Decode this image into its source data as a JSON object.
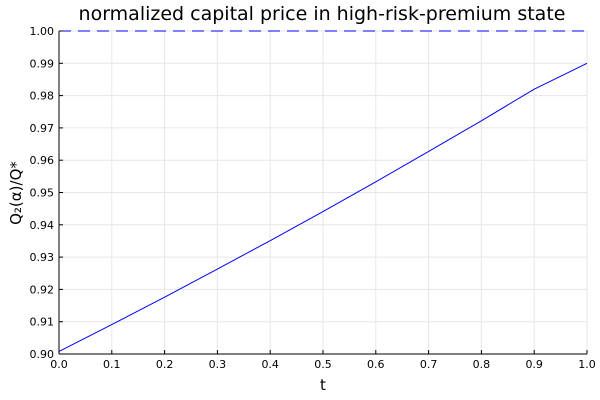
{
  "chart_data": {
    "type": "line",
    "title": "normalized capital price in high-risk-premium state",
    "xlabel": "t",
    "ylabel": "Q₂(α)/Q*",
    "xlim": [
      0.0,
      1.0
    ],
    "ylim": [
      0.9,
      1.0
    ],
    "xticks": [
      "0.0",
      "0.1",
      "0.2",
      "0.3",
      "0.4",
      "0.5",
      "0.6",
      "0.7",
      "0.8",
      "0.9",
      "1.0"
    ],
    "yticks": [
      "0.90",
      "0.91",
      "0.92",
      "0.93",
      "0.94",
      "0.95",
      "0.96",
      "0.97",
      "0.98",
      "0.99",
      "1.00"
    ],
    "grid": true,
    "legend": "none",
    "series": [
      {
        "style": "solid",
        "color": "#0000ff",
        "x": [
          0.0,
          0.1,
          0.2,
          0.3,
          0.4,
          0.5,
          0.6,
          0.7,
          0.8,
          0.9,
          1.0
        ],
        "y": [
          0.9008,
          0.9091,
          0.9176,
          0.9263,
          0.9351,
          0.9441,
          0.9533,
          0.9627,
          0.9722,
          0.982,
          0.99
        ]
      },
      {
        "style": "dashed",
        "color": "#0000ff",
        "x": [
          0.0,
          1.0
        ],
        "y": [
          1.0,
          1.0
        ]
      }
    ]
  }
}
